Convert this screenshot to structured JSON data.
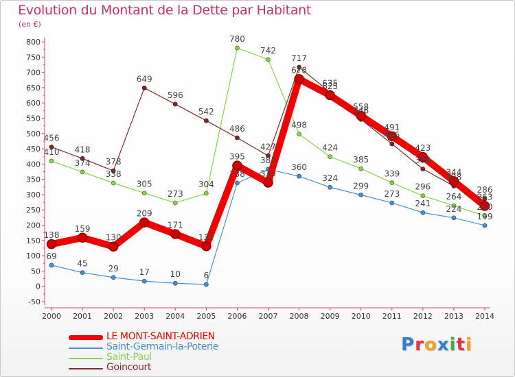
{
  "title": "Evolution du Montant de la Dette par Habitant",
  "subtitle": "(en €)",
  "logo": {
    "text": "Proxiti",
    "colors": [
      "#2f7fd0",
      "#e2353f",
      "#f0a21e",
      "#2f7fd0",
      "#45a843",
      "#e2353f",
      "#f0a21e"
    ]
  },
  "chart_data": {
    "type": "line",
    "title": "Evolution du Montant de la Dette par Habitant",
    "ylabel": "(en €)",
    "x": [
      2000,
      2001,
      2002,
      2003,
      2004,
      2005,
      2006,
      2007,
      2008,
      2009,
      2010,
      2011,
      2012,
      2013,
      2014
    ],
    "ylim": [
      -50,
      800
    ],
    "yticks": [
      -50,
      0,
      50,
      100,
      150,
      200,
      250,
      300,
      350,
      400,
      450,
      500,
      550,
      600,
      650,
      700,
      750,
      800
    ],
    "grid": false,
    "legend_position": "bottom-left",
    "series": [
      {
        "name": "LE MONT-SAINT-ADRIEN",
        "color": "#f00000",
        "values": [
          138,
          159,
          130,
          209,
          171,
          131,
          395,
          339,
          678,
          625,
          558,
          491,
          423,
          344,
          263
        ]
      },
      {
        "name": "Saint-Germain-la-Poterie",
        "color": "#4a8fd0",
        "values": [
          69,
          45,
          29,
          17,
          10,
          6,
          338,
          383,
          360,
          324,
          299,
          273,
          241,
          224,
          199
        ]
      },
      {
        "name": "Saint-Paul",
        "color": "#88d150",
        "values": [
          410,
          374,
          338,
          305,
          273,
          304,
          780,
          742,
          498,
          424,
          385,
          339,
          296,
          264,
          230
        ]
      },
      {
        "name": "Goincourt",
        "color": "#7d2a2a",
        "values": [
          456,
          418,
          378,
          649,
          596,
          542,
          486,
          427,
          717,
          635,
          546,
          466,
          384,
          328,
          286
        ]
      }
    ]
  }
}
